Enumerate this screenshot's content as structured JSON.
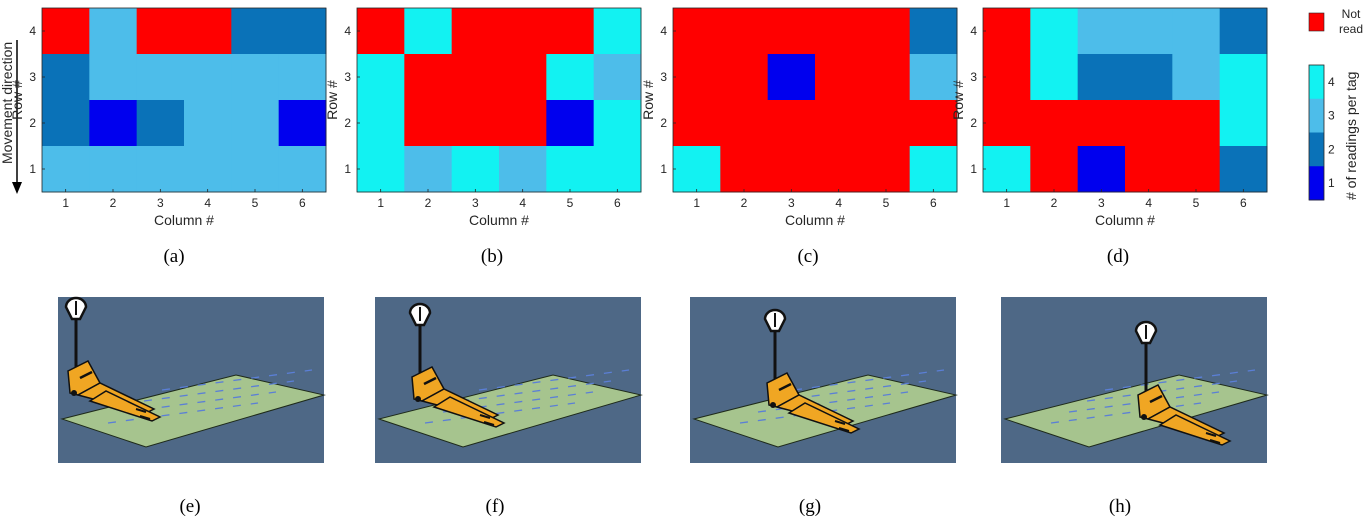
{
  "side_label": "Movement direction",
  "captions": [
    "(a)",
    "(b)",
    "(c)",
    "(d)",
    "(e)",
    "(f)",
    "(g)",
    "(h)"
  ],
  "colorbar": {
    "not_read_label_line1": "Not",
    "not_read_label_line2": "read",
    "title": "# of readings per tag",
    "ticks": [
      "1",
      "2",
      "3",
      "4"
    ],
    "colors": {
      "1": "#0000ee",
      "2": "#0a72b8",
      "3": "#4dbdea",
      "4": "#12f2f2",
      "not_read": "#ff0000"
    }
  },
  "scene_colors": {
    "background": "#4e6886",
    "floor": "#a6c48e",
    "truck": "#f0a623"
  },
  "chart_data": [
    {
      "type": "heatmap",
      "title": "",
      "xlabel": "Column #",
      "ylabel": "Row #",
      "x": [
        "1",
        "2",
        "3",
        "4",
        "5",
        "6"
      ],
      "y": [
        "1",
        "2",
        "3",
        "4"
      ],
      "legend": "0 = Not read",
      "values_rows_top_to_bottom": [
        [
          0,
          3,
          0,
          0,
          2,
          2
        ],
        [
          2,
          3,
          3,
          3,
          3,
          3
        ],
        [
          2,
          1,
          2,
          3,
          3,
          1
        ],
        [
          3,
          3,
          3,
          3,
          3,
          3
        ]
      ]
    },
    {
      "type": "heatmap",
      "title": "",
      "xlabel": "Column #",
      "ylabel": "Row #",
      "x": [
        "1",
        "2",
        "3",
        "4",
        "5",
        "6"
      ],
      "y": [
        "1",
        "2",
        "3",
        "4"
      ],
      "legend": "0 = Not read",
      "values_rows_top_to_bottom": [
        [
          0,
          4,
          0,
          0,
          0,
          4
        ],
        [
          4,
          0,
          0,
          0,
          4,
          3
        ],
        [
          4,
          0,
          0,
          0,
          1,
          4
        ],
        [
          4,
          3,
          4,
          3,
          4,
          4
        ]
      ]
    },
    {
      "type": "heatmap",
      "title": "",
      "xlabel": "Column #",
      "ylabel": "Row #",
      "x": [
        "1",
        "2",
        "3",
        "4",
        "5",
        "6"
      ],
      "y": [
        "1",
        "2",
        "3",
        "4"
      ],
      "legend": "0 = Not read",
      "values_rows_top_to_bottom": [
        [
          0,
          0,
          0,
          0,
          0,
          2
        ],
        [
          0,
          0,
          1,
          0,
          0,
          3
        ],
        [
          0,
          0,
          0,
          0,
          0,
          0
        ],
        [
          4,
          0,
          0,
          0,
          0,
          4
        ]
      ]
    },
    {
      "type": "heatmap",
      "title": "",
      "xlabel": "Column #",
      "ylabel": "Row #",
      "x": [
        "1",
        "2",
        "3",
        "4",
        "5",
        "6"
      ],
      "y": [
        "1",
        "2",
        "3",
        "4"
      ],
      "legend": "0 = Not read",
      "values_rows_top_to_bottom": [
        [
          0,
          4,
          3,
          3,
          3,
          2
        ],
        [
          0,
          4,
          2,
          2,
          3,
          4
        ],
        [
          0,
          0,
          0,
          0,
          0,
          4
        ],
        [
          4,
          0,
          1,
          0,
          0,
          2
        ]
      ]
    }
  ]
}
